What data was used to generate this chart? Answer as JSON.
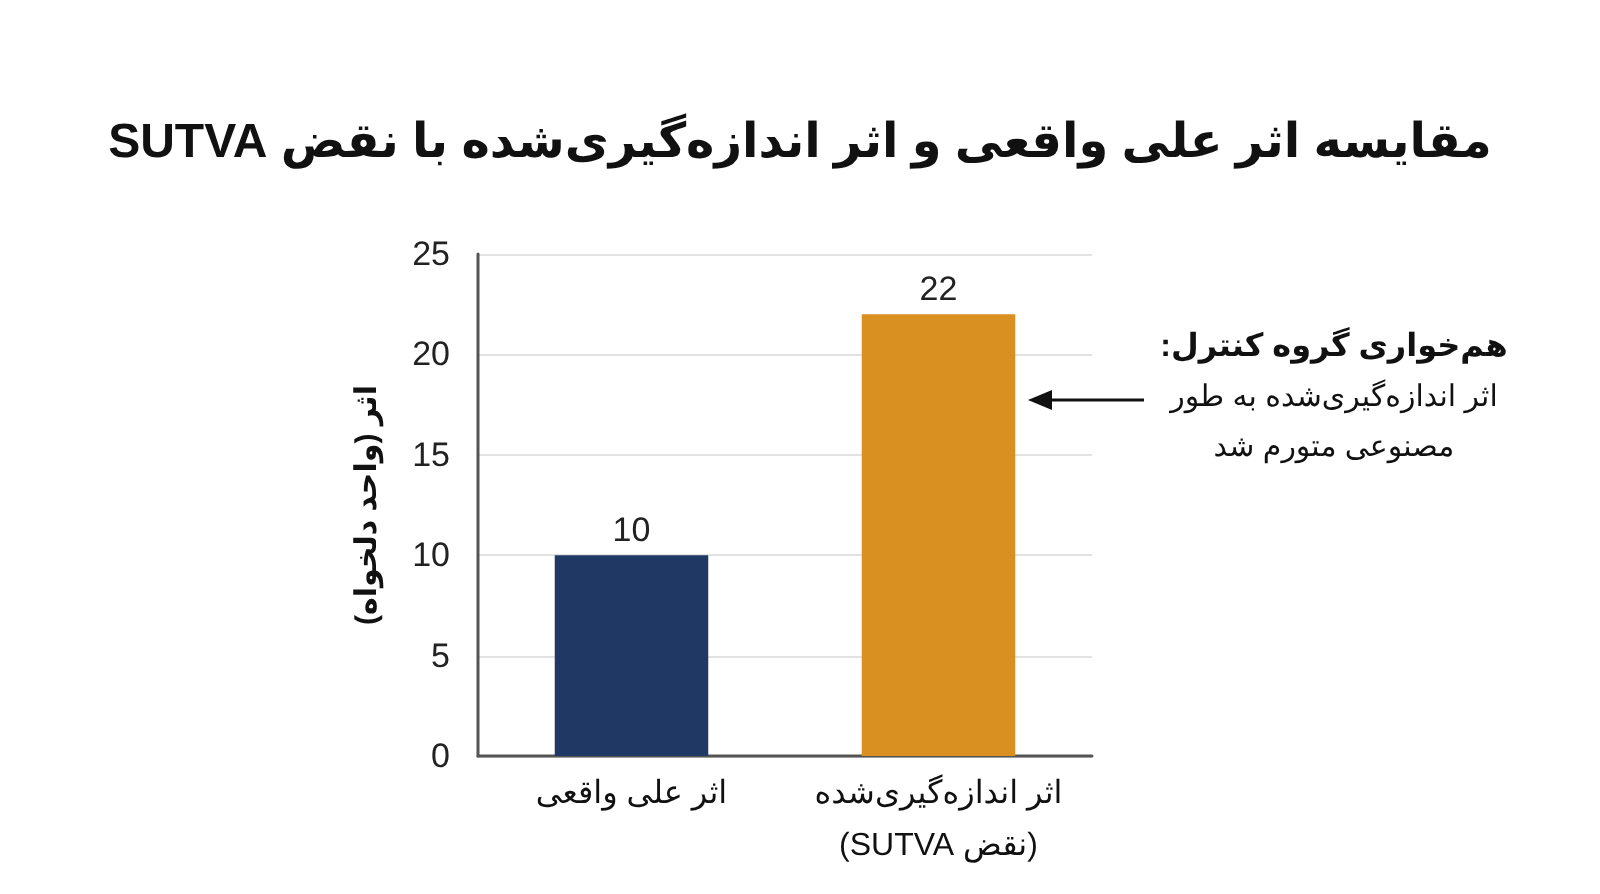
{
  "chart_data": {
    "type": "bar",
    "title": "مقایسه اثر علی واقعی و اثر اندازه‌گیری‌شده با نقض SUTVA",
    "ylabel": "اثر (واحد دلخواه)",
    "categories": [
      "اثر علی واقعی",
      "اثر اندازه‌گیری‌شده\n(نقض SUTVA)"
    ],
    "values": [
      10,
      22
    ],
    "colors": [
      "#1f3864",
      "#d99020"
    ],
    "ylim": [
      0,
      25
    ],
    "yticks": [
      0,
      5,
      10,
      15,
      20,
      25
    ],
    "grid": "y",
    "data_labels": true,
    "annotations": [
      "هم‌خواری گروه کنترل:\nاثر اندازه‌گیری‌شده به طور\nمصنوعی متورم شد"
    ]
  }
}
